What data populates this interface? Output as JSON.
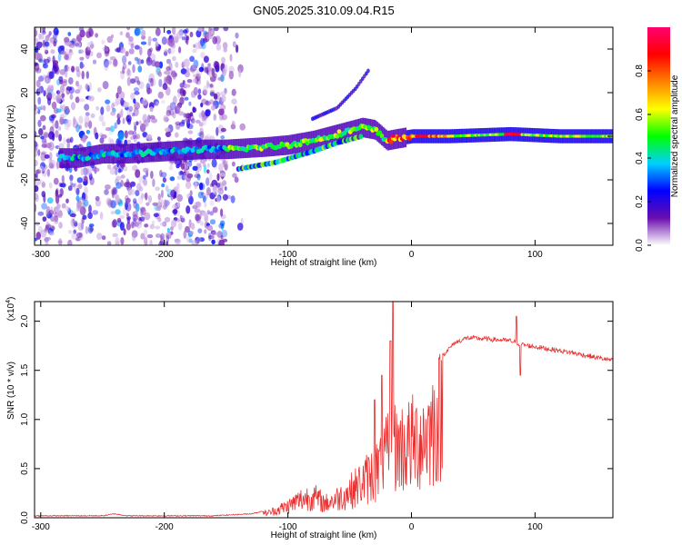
{
  "chart_data": [
    {
      "type": "heatmap",
      "title": "GN05.2025.310.09.04.R15",
      "xlabel": "Height of straight line (km)",
      "ylabel": "Frequency (Hz)",
      "xlim": [
        -305,
        163
      ],
      "ylim": [
        -50,
        50
      ],
      "x_ticks": [
        -300,
        -200,
        -100,
        0,
        100
      ],
      "y_ticks": [
        -40,
        -20,
        0,
        20,
        40
      ],
      "colorbar": {
        "label": "Normalized spectral amplitude",
        "range": [
          0,
          1
        ],
        "ticks": [
          "0.0",
          "0.2",
          "0.4",
          "0.6",
          "0.8"
        ],
        "stops": [
          "#ffffff",
          "#6a0dad",
          "#0000ff",
          "#00d0ff",
          "#00ff00",
          "#ffff00",
          "#ff8000",
          "#ff0000",
          "#ff0070"
        ]
      },
      "ridge": [
        {
          "x": -270,
          "f": -10
        },
        {
          "x": -250,
          "f": -8
        },
        {
          "x": -230,
          "f": -8
        },
        {
          "x": -200,
          "f": -7
        },
        {
          "x": -170,
          "f": -6
        },
        {
          "x": -150,
          "f": -6
        },
        {
          "x": -120,
          "f": -5
        },
        {
          "x": -100,
          "f": -4
        },
        {
          "x": -80,
          "f": -2
        },
        {
          "x": -60,
          "f": 1
        },
        {
          "x": -40,
          "f": 4
        },
        {
          "x": -30,
          "f": 3
        },
        {
          "x": -20,
          "f": -2
        },
        {
          "x": -10,
          "f": -1
        },
        {
          "x": 0,
          "f": 0
        },
        {
          "x": 30,
          "f": 0
        },
        {
          "x": 80,
          "f": 1
        },
        {
          "x": 120,
          "f": 0
        },
        {
          "x": 160,
          "f": 0
        }
      ],
      "secondary_ridge": [
        {
          "x": -140,
          "f": -15
        },
        {
          "x": -110,
          "f": -12
        },
        {
          "x": -80,
          "f": -7
        },
        {
          "x": -60,
          "f": -3
        },
        {
          "x": -40,
          "f": 0
        }
      ],
      "upper_branch": [
        {
          "x": -80,
          "f": 8
        },
        {
          "x": -60,
          "f": 13
        },
        {
          "x": -45,
          "f": 22
        },
        {
          "x": -35,
          "f": 30
        }
      ]
    },
    {
      "type": "line",
      "xlabel": "Height of straight line (km)",
      "ylabel": "SNR (10 * v/v)",
      "scale_label": "(x10",
      "scale_exp": "4",
      "scale_close": ")",
      "xlim": [
        -305,
        163
      ],
      "ylim": [
        0,
        2.2
      ],
      "x_ticks": [
        -300,
        -200,
        -100,
        0,
        100
      ],
      "y_ticks": [
        0.0,
        0.5,
        1.0,
        1.5,
        2.0
      ],
      "series": [
        {
          "name": "SNR",
          "color": "#e83030",
          "envelope": [
            {
              "x": -305,
              "y": 0.02
            },
            {
              "x": -250,
              "y": 0.02
            },
            {
              "x": -240,
              "y": 0.04
            },
            {
              "x": -230,
              "y": 0.02
            },
            {
              "x": -160,
              "y": 0.02
            },
            {
              "x": -130,
              "y": 0.04
            },
            {
              "x": -115,
              "y": 0.08
            },
            {
              "x": -100,
              "y": 0.18
            },
            {
              "x": -90,
              "y": 0.28
            },
            {
              "x": -80,
              "y": 0.34
            },
            {
              "x": -70,
              "y": 0.22
            },
            {
              "x": -60,
              "y": 0.3
            },
            {
              "x": -50,
              "y": 0.4
            },
            {
              "x": -40,
              "y": 0.55
            },
            {
              "x": -30,
              "y": 0.7
            },
            {
              "x": -20,
              "y": 0.95
            },
            {
              "x": -14,
              "y": 1.1
            },
            {
              "x": -5,
              "y": 1.1
            },
            {
              "x": 5,
              "y": 1.2
            },
            {
              "x": 15,
              "y": 1.35
            },
            {
              "x": 25,
              "y": 1.65
            },
            {
              "x": 35,
              "y": 1.78
            },
            {
              "x": 45,
              "y": 1.83
            },
            {
              "x": 60,
              "y": 1.82
            },
            {
              "x": 80,
              "y": 1.8
            },
            {
              "x": 90,
              "y": 1.76
            },
            {
              "x": 110,
              "y": 1.72
            },
            {
              "x": 130,
              "y": 1.68
            },
            {
              "x": 150,
              "y": 1.63
            },
            {
              "x": 163,
              "y": 1.6
            }
          ],
          "spikes": [
            {
              "x": -15,
              "y": 2.2
            },
            {
              "x": -17,
              "y": 1.8
            },
            {
              "x": -24,
              "y": 1.45
            },
            {
              "x": -30,
              "y": 1.2
            },
            {
              "x": 85,
              "y": 2.05
            },
            {
              "x": 88,
              "y": 1.45
            }
          ]
        }
      ]
    }
  ]
}
